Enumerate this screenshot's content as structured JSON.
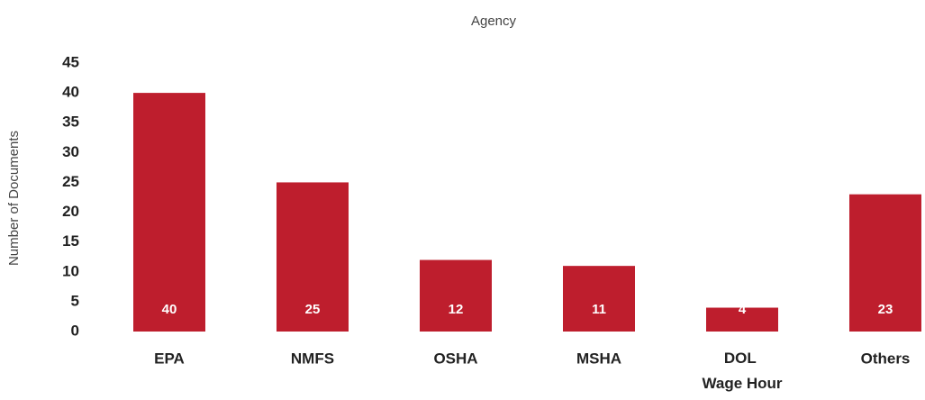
{
  "chart_data": {
    "type": "bar",
    "title": "Agency",
    "ylabel": "Number of Documents",
    "categories": [
      "EPA",
      "NMFS",
      "OSHA",
      "MSHA",
      "DOL Wage Hour",
      "Others"
    ],
    "values": [
      40,
      25,
      12,
      11,
      4,
      23
    ],
    "color": "#be1e2d",
    "ylim": [
      0,
      45
    ],
    "yticks": [
      0,
      5,
      10,
      15,
      20,
      25,
      30,
      35,
      40,
      45
    ],
    "grid": false
  }
}
